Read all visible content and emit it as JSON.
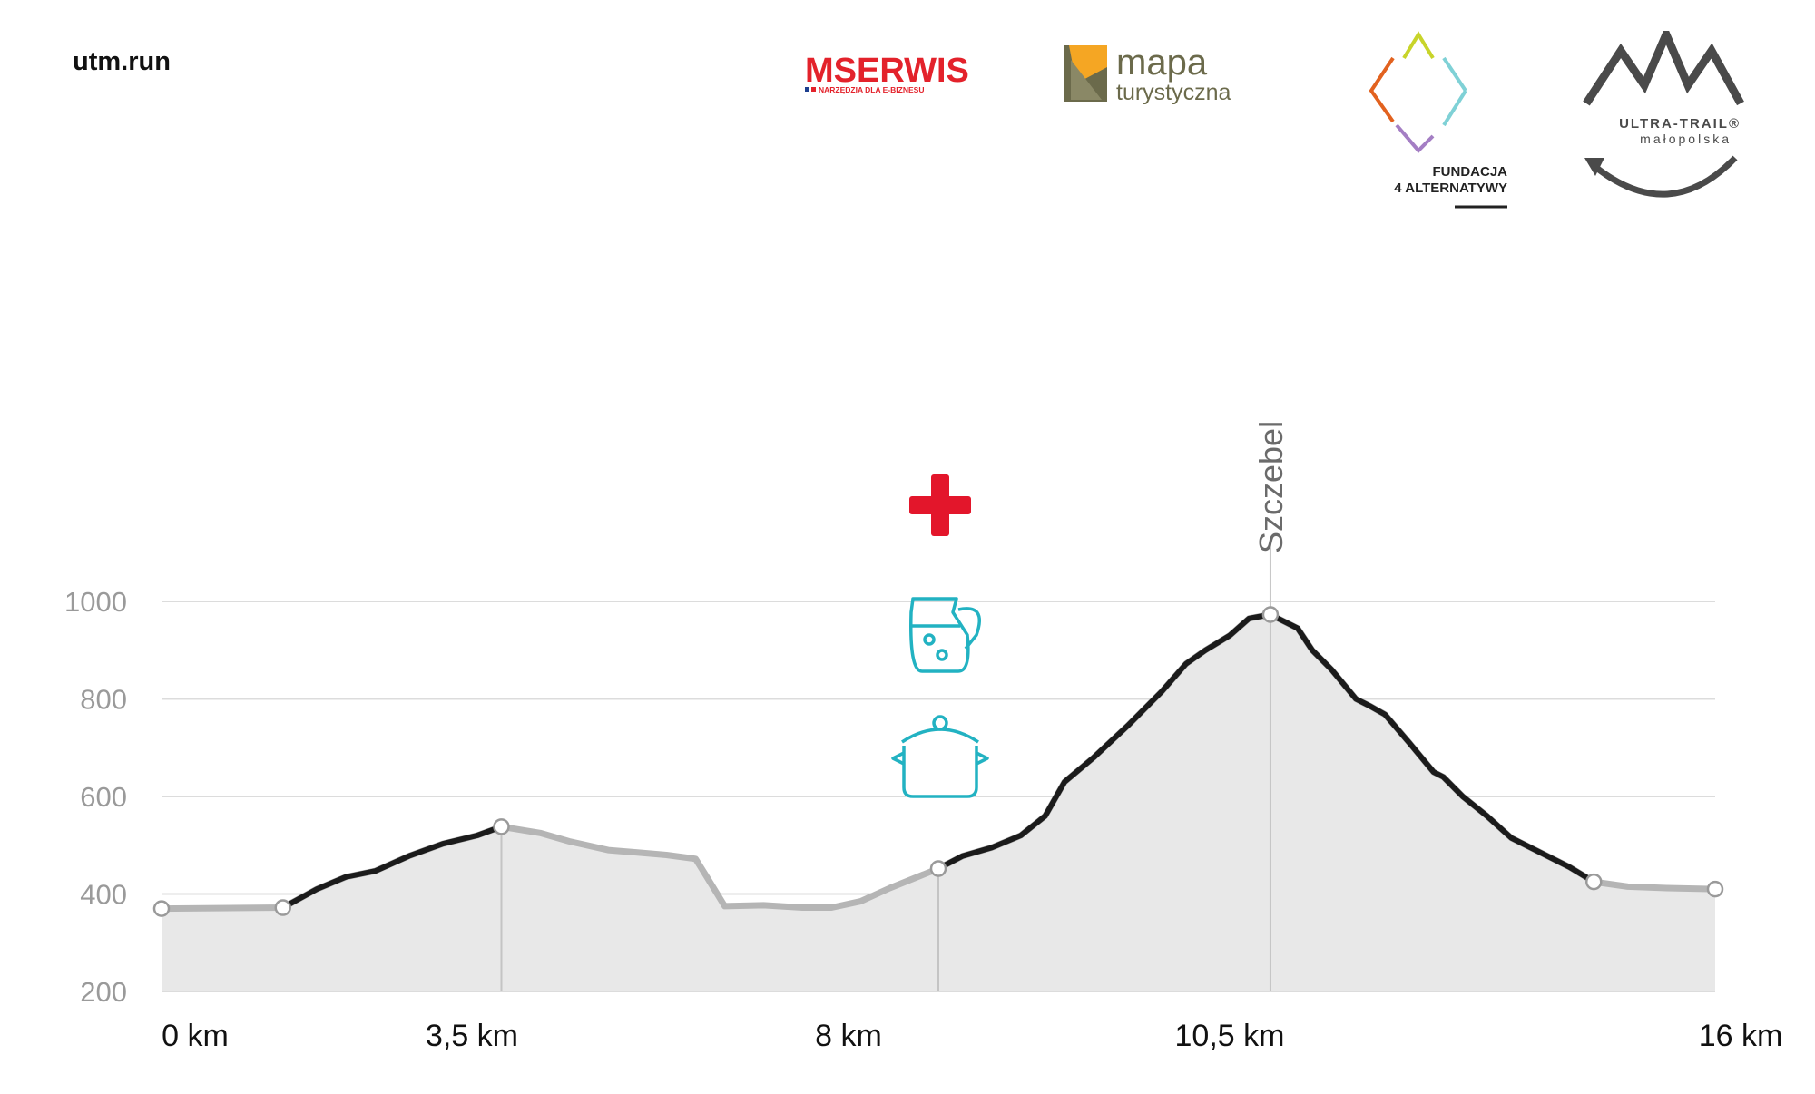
{
  "site": "utm.run",
  "logos": [
    {
      "name": "mserwis",
      "text": "MSERWIS",
      "tagline": "NARZĘDZIA DLA E-BIZNESU"
    },
    {
      "name": "mapa-turystyczna",
      "text": "mapa",
      "tagline": "turystyczna"
    },
    {
      "name": "fundacja",
      "line1": "FUNDACJA",
      "line2": "4 ALTERNATYWY"
    },
    {
      "name": "ultra-trail",
      "line1": "ULTRA-TRAIL®",
      "line2": "małopolska"
    }
  ],
  "colors": {
    "background": "#ffffff",
    "area_fill": "#e8e8e8",
    "grid": "#dcdcdc",
    "tick_label": "#9a9a9a",
    "line_dark": "#1b1b1b",
    "line_light": "#b5b5b5",
    "marker": "#9a9a9a",
    "aid_icon": "#22b2c2",
    "medical": "#e3162b",
    "mserwis_red": "#e3222b",
    "mserwis_blue": "#1d3f8f",
    "mapa_orange": "#f5a623",
    "mapa_olive": "#6b6a4b",
    "logo_grey": "#4a4a4a"
  },
  "chart_data": {
    "type": "area",
    "title": "",
    "xlabel": "",
    "ylabel": "",
    "ylim": [
      200,
      1000
    ],
    "y_ticks": [
      200,
      400,
      600,
      800,
      1000
    ],
    "grid": true,
    "x_tick_labels": [
      {
        "km": 0,
        "label": "0 km"
      },
      {
        "km": 3.5,
        "label": "3,5 km"
      },
      {
        "km": 8,
        "label": "8 km"
      },
      {
        "km": 10.5,
        "label": "10,5 km"
      },
      {
        "km": 16,
        "label": "16 km"
      }
    ],
    "profile": [
      [
        0,
        370
      ],
      [
        1.25,
        372
      ],
      [
        1.6,
        410
      ],
      [
        1.9,
        435
      ],
      [
        2.2,
        447
      ],
      [
        2.55,
        478
      ],
      [
        2.9,
        503
      ],
      [
        3.25,
        520
      ],
      [
        3.5,
        538
      ],
      [
        3.9,
        525
      ],
      [
        4.2,
        508
      ],
      [
        4.6,
        490
      ],
      [
        4.9,
        485
      ],
      [
        5.2,
        480
      ],
      [
        5.5,
        472
      ],
      [
        5.6,
        440
      ],
      [
        5.8,
        375
      ],
      [
        6.2,
        377
      ],
      [
        6.6,
        372
      ],
      [
        6.9,
        372
      ],
      [
        7.2,
        385
      ],
      [
        7.5,
        412
      ],
      [
        8,
        452
      ],
      [
        8.25,
        478
      ],
      [
        8.55,
        495
      ],
      [
        8.85,
        520
      ],
      [
        9.1,
        560
      ],
      [
        9.3,
        630
      ],
      [
        9.6,
        680
      ],
      [
        9.95,
        745
      ],
      [
        10.3,
        815
      ],
      [
        10.55,
        872
      ],
      [
        10.75,
        900
      ],
      [
        11.0,
        930
      ],
      [
        11.2,
        965
      ],
      [
        11.42,
        973
      ],
      [
        11.7,
        945
      ],
      [
        11.85,
        900
      ],
      [
        12.05,
        860
      ],
      [
        12.3,
        800
      ],
      [
        12.45,
        785
      ],
      [
        12.6,
        768
      ],
      [
        12.85,
        710
      ],
      [
        13.1,
        650
      ],
      [
        13.2,
        640
      ],
      [
        13.4,
        600
      ],
      [
        13.65,
        560
      ],
      [
        13.9,
        515
      ],
      [
        14.2,
        485
      ],
      [
        14.5,
        455
      ],
      [
        14.75,
        425
      ],
      [
        15.1,
        415
      ],
      [
        15.5,
        412
      ],
      [
        16,
        410
      ]
    ],
    "dark_segments": [
      [
        1.25,
        3.5
      ],
      [
        8,
        14.75
      ]
    ],
    "waypoints": [
      {
        "km": 0,
        "ele": 370
      },
      {
        "km": 1.25,
        "ele": 372
      },
      {
        "km": 3.5,
        "ele": 538
      },
      {
        "km": 8,
        "ele": 452
      },
      {
        "km": 11.42,
        "ele": 973
      },
      {
        "km": 14.75,
        "ele": 425
      },
      {
        "km": 16,
        "ele": 410
      }
    ],
    "peak": {
      "label": "Szczebel",
      "km": 11.42,
      "ele": 973
    },
    "aid_station": {
      "km": 8,
      "icons": [
        "medical-cross",
        "water-jug",
        "cooking-pot"
      ]
    }
  }
}
